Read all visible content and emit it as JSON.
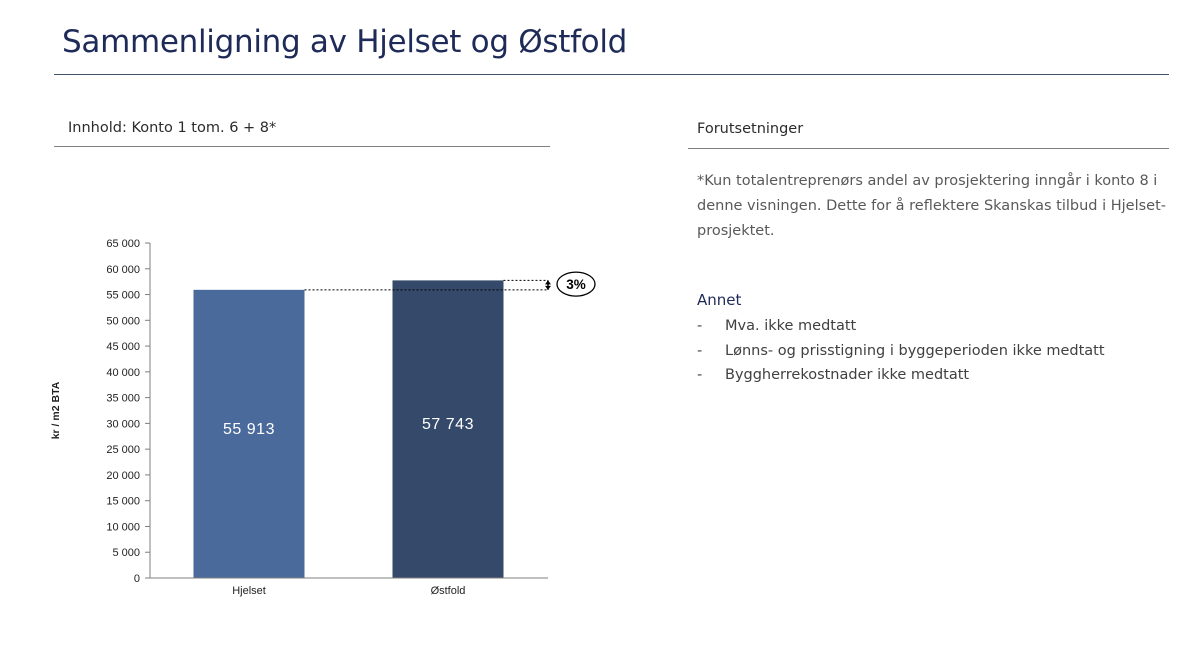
{
  "page": {
    "title": "Sammenligning av Hjelset og Østfold"
  },
  "left_panel": {
    "heading": "Innhold: Konto 1 tom. 6 + 8*"
  },
  "right_panel": {
    "heading": "Forutsetninger",
    "assumption_text": "*Kun totalentreprenørs andel av prosjektering inngår i konto 8 i denne visningen. Dette for å reflektere Skanskas tilbud i Hjelset-prosjektet.",
    "annet_heading": "Annet",
    "annet_items": [
      "Mva. ikke medtatt",
      "Lønns- og prisstigning i byggeperioden ikke medtatt",
      "Byggherrekostnader ikke medtatt"
    ]
  },
  "chart_data": {
    "type": "bar",
    "categories": [
      "Hjelset",
      "Østfold"
    ],
    "values": [
      55913,
      57743
    ],
    "data_labels": [
      "55 913",
      "57 743"
    ],
    "ylabel": "kr / m2 BTA",
    "ylim": [
      0,
      65000
    ],
    "yticks": [
      "0",
      "5 000",
      "10 000",
      "15 000",
      "20 000",
      "25 000",
      "30 000",
      "35 000",
      "40 000",
      "45 000",
      "50 000",
      "55 000",
      "60 000",
      "65 000"
    ],
    "bar_colors": [
      "#4a6a9b",
      "#354a6b"
    ],
    "grid": false,
    "annotation": "3%"
  }
}
